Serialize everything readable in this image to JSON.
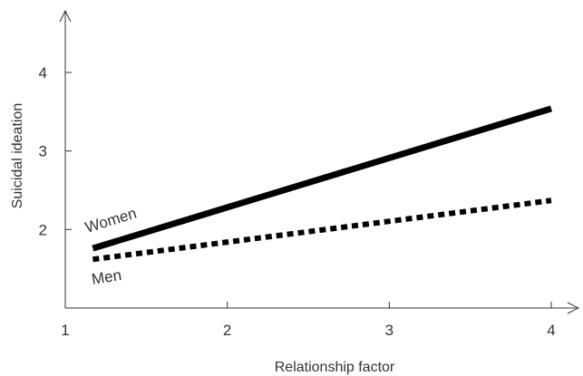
{
  "chart_data": {
    "type": "line",
    "title": "",
    "xlabel": "Relationship factor",
    "ylabel": "Suicidal ideation",
    "xlim": [
      1,
      4.1
    ],
    "ylim": [
      1.0,
      4.35
    ],
    "xticks": [
      1,
      2,
      3,
      4
    ],
    "yticks": [
      2,
      3,
      4
    ],
    "grid": false,
    "legend": "none",
    "series": [
      {
        "name": "Women",
        "style": "solid",
        "color": "#000000",
        "x": [
          1.17,
          4.0
        ],
        "y": [
          1.76,
          3.54
        ]
      },
      {
        "name": "Men",
        "style": "dotted",
        "color": "#000000",
        "x": [
          1.17,
          4.0
        ],
        "y": [
          1.62,
          2.37
        ]
      }
    ]
  }
}
